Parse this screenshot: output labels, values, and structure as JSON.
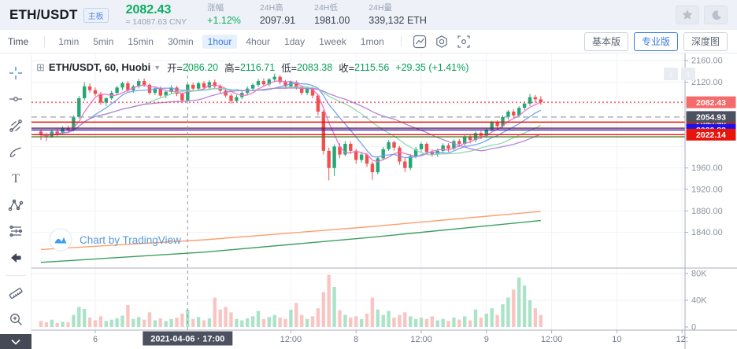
{
  "header": {
    "symbol": "ETH/USDT",
    "board_badge": "主板",
    "price": "2082.43",
    "price_cny": "≈ 14087.63 CNY",
    "stats": [
      {
        "label": "涨幅",
        "value": "+1.12%",
        "positive": true
      },
      {
        "label": "24H高",
        "value": "2097.91",
        "positive": false
      },
      {
        "label": "24H低",
        "value": "1981.00",
        "positive": false
      },
      {
        "label": "24H量",
        "value": "339,132 ETH",
        "positive": false
      }
    ],
    "icons": [
      "favorite-star-icon",
      "dark-mode-moon-icon"
    ]
  },
  "toolbar": {
    "time_label": "Time",
    "intervals": [
      "1min",
      "5min",
      "15min",
      "30min",
      "1hour",
      "4hour",
      "1day",
      "1week",
      "1mon"
    ],
    "active_interval": "1hour",
    "icons": [
      "kline-style-icon",
      "indicator-settings-icon",
      "screenshot-icon"
    ],
    "view_buttons": [
      {
        "label": "基本版",
        "active": false
      },
      {
        "label": "专业版",
        "active": true
      },
      {
        "label": "深度图",
        "active": false
      }
    ]
  },
  "left_toolbar": {
    "tools": [
      "crosshair-tool",
      "trendline-tool",
      "gann-tool",
      "brush-tool",
      "text-tool",
      "pattern-tool",
      "fib-retracement-tool",
      "undo-arrow-tool",
      "divider",
      "ruler-tool",
      "zoom-in-tool"
    ],
    "active_tool": "crosshair-tool"
  },
  "legend": {
    "title": "ETH/USDT, 60, Huobi",
    "open_label": "开=",
    "open": "2086.20",
    "high_label": "高=",
    "high": "2116.71",
    "low_label": "低=",
    "low": "2083.38",
    "close_label": "收=",
    "close": "2115.56",
    "change": "+29.35 (+1.41%)"
  },
  "watermark": {
    "text": "Chart by TradingView"
  },
  "scale_buttons": [
    {
      "name": "scale-down-icon",
      "glyph": "↓"
    },
    {
      "name": "scale-reset-icon",
      "glyph": "↕"
    }
  ],
  "chart_data": {
    "type": "candlestick",
    "symbol": "ETH/USDT",
    "interval_minutes": 60,
    "exchange": "Huobi",
    "colors": {
      "up": "#23a776",
      "down": "#f0504e",
      "vol_up": "#abe3c9",
      "vol_down": "#f8c5c3",
      "ma_fast": "#ef6ec9",
      "ma_mid": "#6b9ff2",
      "ma_slow": "#8ad8ab",
      "ma_slowest": "#b07fd8",
      "trend_orange": "#ff9e6d",
      "trend_green": "#3a9e5f",
      "accent": "#3b7ce0"
    },
    "price_axis_ticks": [
      {
        "label": "2160.00",
        "price": 2160
      },
      {
        "label": "2120.00",
        "price": 2120
      },
      {
        "label": "1960.00",
        "price": 1960
      },
      {
        "label": "1920.00",
        "price": 1920
      },
      {
        "label": "1880.00",
        "price": 1880
      },
      {
        "label": "1840.00",
        "price": 1840
      }
    ],
    "grid_prices": [
      2160,
      2120,
      2080,
      2040,
      2000,
      1960,
      1920,
      1880,
      1840
    ],
    "volume_axis_ticks": [
      {
        "label": "80K",
        "v": 80
      },
      {
        "label": "40K",
        "v": 40
      },
      {
        "label": "0",
        "v": 0
      }
    ],
    "time_ticks": [
      {
        "label": "6",
        "slot": 10
      },
      {
        "label": "12:00",
        "slot": 46
      },
      {
        "label": "8",
        "slot": 58
      },
      {
        "label": "12:00",
        "slot": 70
      },
      {
        "label": "9",
        "slot": 82
      },
      {
        "label": "12:00",
        "slot": 94
      },
      {
        "label": "10",
        "slot": 106
      },
      {
        "label": "12:",
        "slot": 118
      }
    ],
    "crosshair": {
      "slot": 27,
      "time_label": "2021-04-06 · 17:00"
    },
    "price_lines": [
      {
        "price": 2082.43,
        "style": "dotted",
        "color": "#f23645",
        "badge": "#f56a6a",
        "z": 2
      },
      {
        "price": 2045.46,
        "style": "solid",
        "color": "#e8150d",
        "badge": "#e8150d",
        "z": 1
      },
      {
        "price": 2054.93,
        "style": "dashed",
        "color": "#98a1ad",
        "badge": "#4c5160",
        "z": 2
      },
      {
        "price": 2034.2,
        "style": "solid",
        "color": "#7a2020",
        "badge": null,
        "z": 1
      },
      {
        "price": 2030.83,
        "style": "solid",
        "color": "#1a12e8",
        "badge": "#1a12e8",
        "z": 2
      },
      {
        "price": 2022.14,
        "style": "solid",
        "color": "#e8150d",
        "badge": "#e8150d",
        "z": 2
      },
      {
        "price": 2018.0,
        "style": "solid",
        "color": "#4e7a28",
        "badge": null,
        "z": 1
      }
    ],
    "ma_periods": {
      "fast": 5,
      "mid": 10,
      "slow": 20,
      "slowest": 30
    },
    "trend_lines": [
      {
        "color": "#ff9e6d",
        "points": [
          [
            0,
            1808
          ],
          [
            30,
            1826
          ],
          [
            60,
            1850
          ],
          [
            92,
            1879
          ]
        ]
      },
      {
        "color": "#3a9e5f",
        "points": [
          [
            0,
            1784
          ],
          [
            30,
            1803
          ],
          [
            60,
            1830
          ],
          [
            92,
            1862
          ]
        ]
      }
    ],
    "candles": [
      [
        2028,
        2032,
        2012,
        2022
      ],
      [
        2022,
        2026,
        2010,
        2018
      ],
      [
        2018,
        2031,
        2016,
        2028
      ],
      [
        2028,
        2033,
        2019,
        2024
      ],
      [
        2024,
        2038,
        2022,
        2035
      ],
      [
        2035,
        2039,
        2026,
        2030
      ],
      [
        2030,
        2058,
        2028,
        2055
      ],
      [
        2055,
        2094,
        2052,
        2090
      ],
      [
        2090,
        2120,
        2086,
        2112
      ],
      [
        2112,
        2118,
        2100,
        2105
      ],
      [
        2105,
        2110,
        2094,
        2098
      ],
      [
        2098,
        2102,
        2078,
        2082
      ],
      [
        2082,
        2092,
        2076,
        2090
      ],
      [
        2090,
        2104,
        2087,
        2100
      ],
      [
        2100,
        2113,
        2096,
        2110
      ],
      [
        2110,
        2121,
        2105,
        2118
      ],
      [
        2118,
        2122,
        2101,
        2105
      ],
      [
        2105,
        2115,
        2100,
        2112
      ],
      [
        2112,
        2126,
        2108,
        2122
      ],
      [
        2122,
        2127,
        2111,
        2115
      ],
      [
        2115,
        2118,
        2097,
        2100
      ],
      [
        2100,
        2111,
        2096,
        2108
      ],
      [
        2108,
        2112,
        2092,
        2095
      ],
      [
        2095,
        2105,
        2090,
        2102
      ],
      [
        2102,
        2114,
        2098,
        2110
      ],
      [
        2110,
        2113,
        2094,
        2098
      ],
      [
        2098,
        2101,
        2083,
        2086
      ],
      [
        2086.2,
        2116.71,
        2083.38,
        2115.56
      ],
      [
        2115,
        2119,
        2104,
        2108
      ],
      [
        2108,
        2121,
        2105,
        2118
      ],
      [
        2118,
        2122,
        2106,
        2110
      ],
      [
        2110,
        2124,
        2107,
        2120
      ],
      [
        2120,
        2125,
        2108,
        2112
      ],
      [
        2112,
        2116,
        2100,
        2104
      ],
      [
        2104,
        2108,
        2091,
        2095
      ],
      [
        2095,
        2099,
        2080,
        2085
      ],
      [
        2085,
        2096,
        2082,
        2092
      ],
      [
        2092,
        2104,
        2088,
        2100
      ],
      [
        2100,
        2112,
        2096,
        2108
      ],
      [
        2108,
        2118,
        2104,
        2115
      ],
      [
        2115,
        2126,
        2111,
        2122
      ],
      [
        2122,
        2127,
        2112,
        2116
      ],
      [
        2116,
        2128,
        2112,
        2125
      ],
      [
        2125,
        2136,
        2120,
        2130
      ],
      [
        2130,
        2133,
        2116,
        2120
      ],
      [
        2120,
        2124,
        2108,
        2112
      ],
      [
        2112,
        2123,
        2108,
        2120
      ],
      [
        2120,
        2123,
        2106,
        2110
      ],
      [
        2110,
        2114,
        2096,
        2100
      ],
      [
        2100,
        2112,
        2096,
        2108
      ],
      [
        2108,
        2111,
        2090,
        2095
      ],
      [
        2095,
        2098,
        2058,
        2065
      ],
      [
        2065,
        2068,
        1985,
        1992
      ],
      [
        1992,
        1998,
        1937,
        1960
      ],
      [
        1960,
        2004,
        1945,
        2000
      ],
      [
        2000,
        2006,
        1978,
        1985
      ],
      [
        1985,
        2010,
        1982,
        2005
      ],
      [
        2005,
        2009,
        1986,
        1992
      ],
      [
        1992,
        1996,
        1968,
        1975
      ],
      [
        1975,
        1990,
        1970,
        1985
      ],
      [
        1985,
        1988,
        1962,
        1968
      ],
      [
        1968,
        1972,
        1938,
        1952
      ],
      [
        1952,
        1982,
        1948,
        1978
      ],
      [
        1978,
        1999,
        1974,
        1995
      ],
      [
        1995,
        2012,
        1992,
        2008
      ],
      [
        2008,
        2011,
        1992,
        1998
      ],
      [
        1998,
        2001,
        1966,
        1972
      ],
      [
        1972,
        1978,
        1952,
        1960
      ],
      [
        1960,
        1986,
        1956,
        1982
      ],
      [
        1982,
        1999,
        1978,
        1995
      ],
      [
        1995,
        2008,
        1990,
        2005
      ],
      [
        2005,
        2008,
        1986,
        1990
      ],
      [
        1990,
        1995,
        1981,
        1985
      ],
      [
        1985,
        1996,
        1981,
        1992
      ],
      [
        1992,
        2006,
        1988,
        2002
      ],
      [
        2002,
        2006,
        1990,
        1996
      ],
      [
        1996,
        2013,
        1993,
        2010
      ],
      [
        2010,
        2014,
        1999,
        2005
      ],
      [
        2005,
        2021,
        2001,
        2018
      ],
      [
        2018,
        2022,
        2006,
        2012
      ],
      [
        2012,
        2028,
        2008,
        2025
      ],
      [
        2025,
        2029,
        2014,
        2020
      ],
      [
        2020,
        2035,
        2016,
        2032
      ],
      [
        2032,
        2048,
        2028,
        2045
      ],
      [
        2045,
        2049,
        2032,
        2038
      ],
      [
        2038,
        2058,
        2034,
        2055
      ],
      [
        2055,
        2068,
        2050,
        2065
      ],
      [
        2065,
        2069,
        2052,
        2058
      ],
      [
        2058,
        2075,
        2054,
        2072
      ],
      [
        2072,
        2084,
        2068,
        2080
      ],
      [
        2080,
        2097.91,
        2076,
        2092
      ],
      [
        2092,
        2096,
        2082,
        2088
      ],
      [
        2088,
        2094,
        2078,
        2082.43
      ]
    ],
    "volumes_k": [
      9,
      7,
      11,
      6,
      8,
      7,
      18,
      30,
      27,
      14,
      10,
      16,
      9,
      11,
      13,
      17,
      33,
      12,
      15,
      11,
      22,
      10,
      13,
      9,
      12,
      14,
      20,
      26,
      12,
      15,
      10,
      13,
      44,
      26,
      30,
      22,
      12,
      10,
      13,
      16,
      24,
      12,
      15,
      18,
      14,
      12,
      26,
      36,
      18,
      12,
      16,
      28,
      52,
      78,
      60,
      25,
      18,
      14,
      16,
      12,
      20,
      44,
      26,
      18,
      24,
      14,
      18,
      22,
      16,
      12,
      14,
      12,
      16,
      10,
      12,
      9,
      14,
      11,
      16,
      10,
      26,
      14,
      20,
      28,
      18,
      34,
      44,
      56,
      74,
      62,
      40,
      28,
      18
    ]
  }
}
